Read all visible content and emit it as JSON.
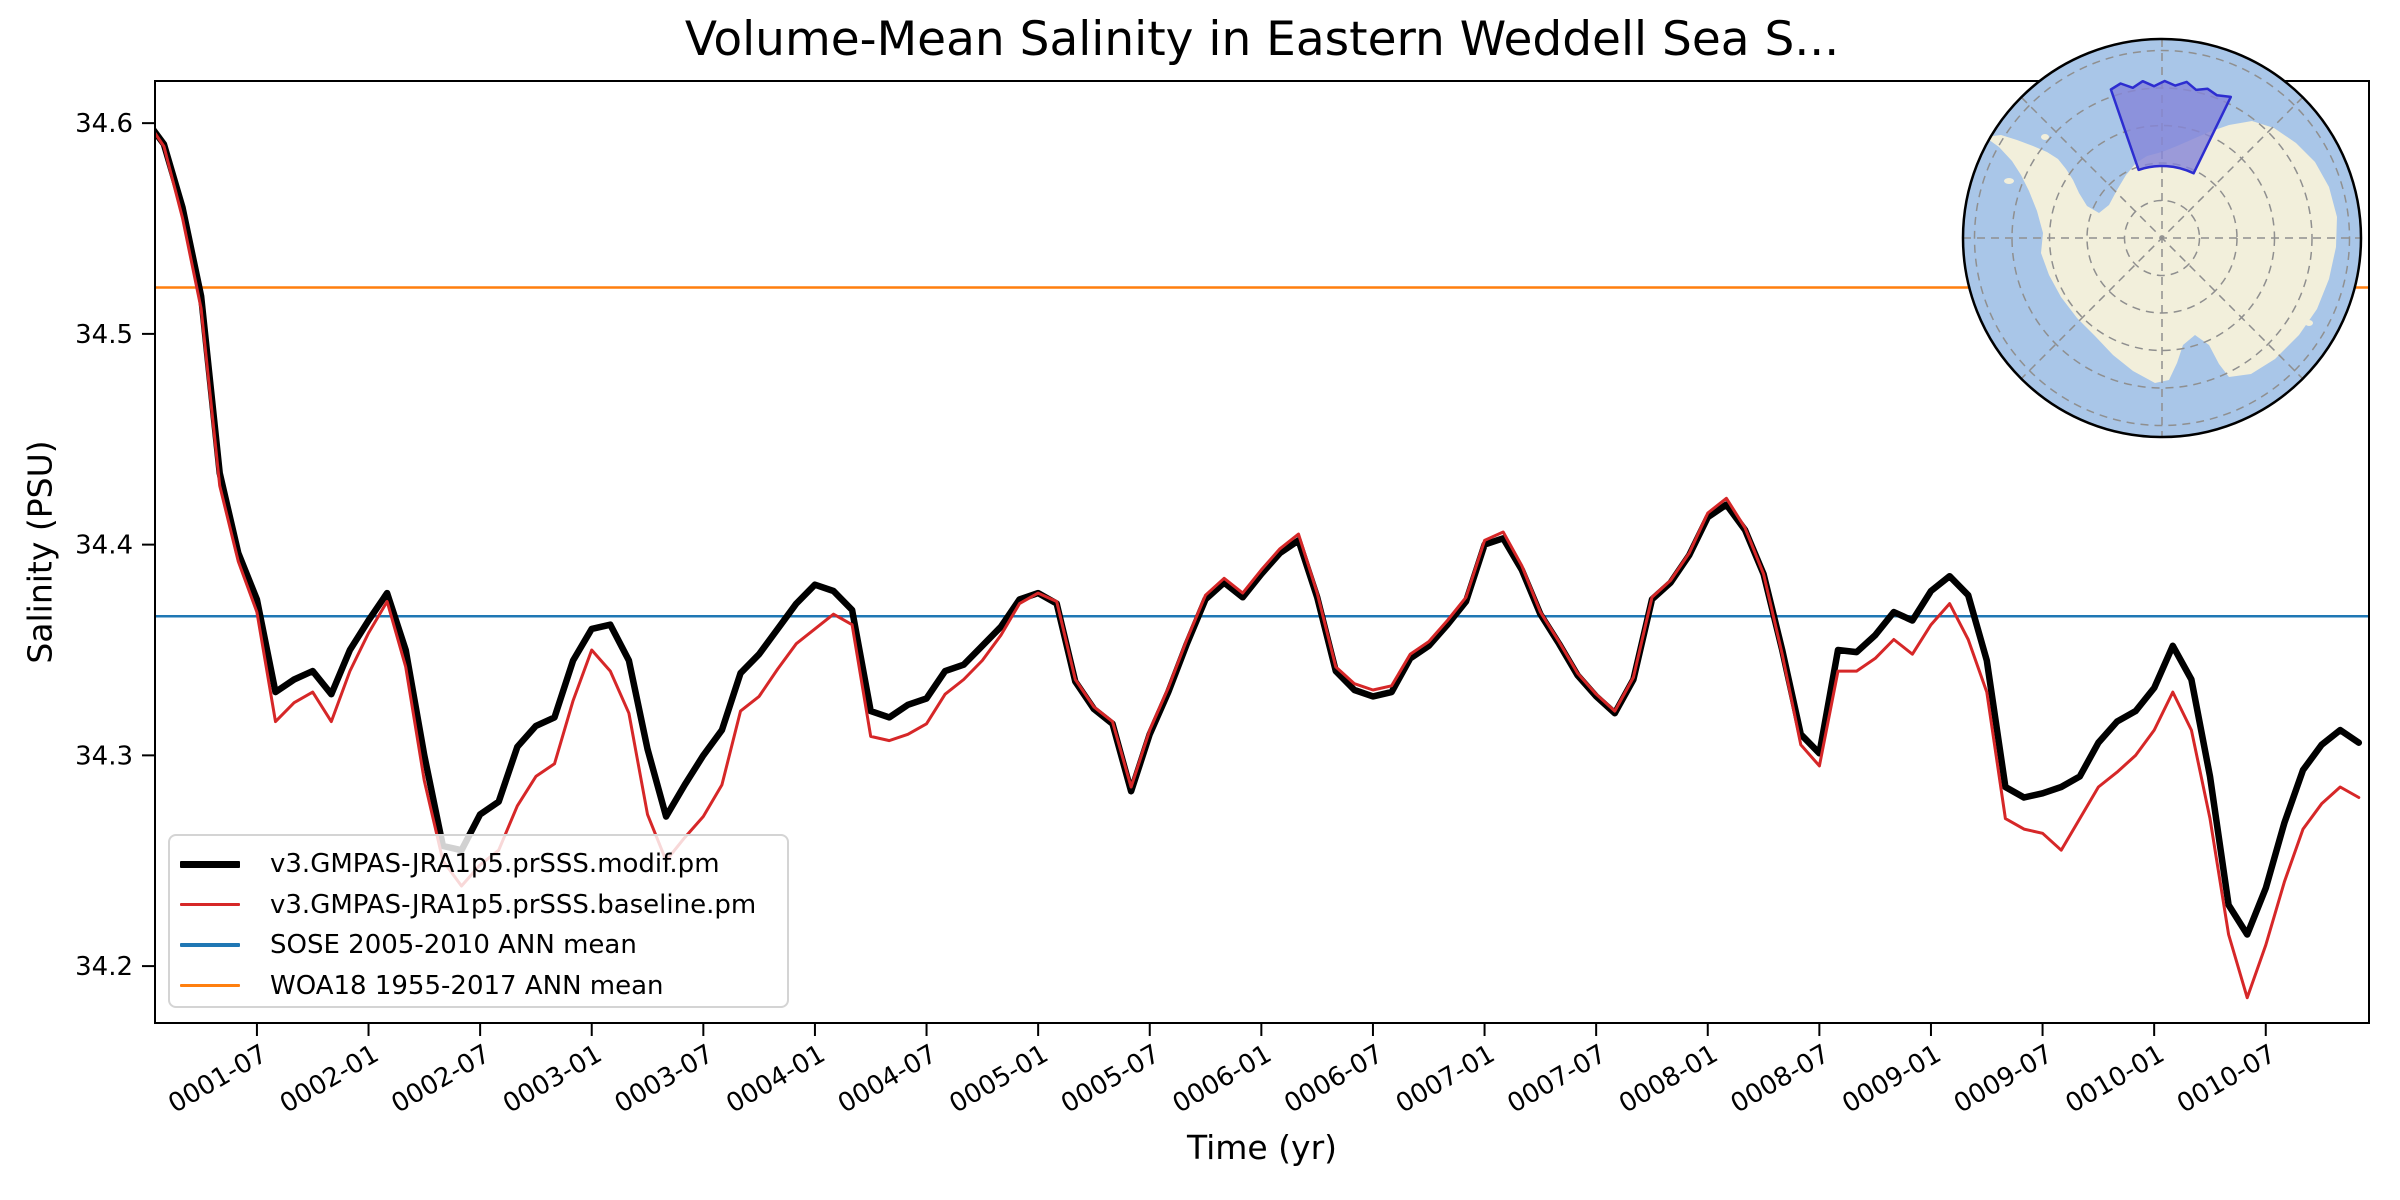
{
  "figure": {
    "title": "Volume-Mean Salinity in Eastern Weddell Sea S...",
    "xlabel": "Time (yr)",
    "ylabel": "Salinity (PSU)"
  },
  "chart_data": {
    "type": "line",
    "title": "Volume-Mean Salinity in Eastern Weddell Sea S...",
    "xlabel": "Time (yr)",
    "ylabel": "Salinity (PSU)",
    "x_unit": "month index from 0001-01",
    "ylim": [
      34.173,
      34.62
    ],
    "xlim_months": [
      0.52,
      119.55
    ],
    "grid": false,
    "ytick_labels": [
      "34.2",
      "34.3",
      "34.4",
      "34.5",
      "34.6"
    ],
    "ytick_values": [
      34.2,
      34.3,
      34.4,
      34.5,
      34.6
    ],
    "xtick_months": [
      6,
      12,
      18,
      24,
      30,
      36,
      42,
      48,
      54,
      60,
      66,
      72,
      78,
      84,
      90,
      96,
      102,
      108,
      114
    ],
    "xtick_labels": [
      "0001-07",
      "0002-01",
      "0002-07",
      "0003-01",
      "0003-07",
      "0004-01",
      "0004-07",
      "0005-01",
      "0005-07",
      "0006-01",
      "0006-07",
      "0007-01",
      "0007-07",
      "0008-01",
      "0008-07",
      "0009-01",
      "0009-07",
      "0010-01",
      "0010-07"
    ],
    "series": [
      {
        "name": "v3.GMPAS-JRA1p5.prSSS.modif.pm",
        "color": "#000000",
        "linewidth": 6.5,
        "values": [
          34.602,
          34.59,
          34.56,
          34.518,
          34.434,
          34.396,
          34.374,
          34.33,
          34.336,
          34.34,
          34.329,
          34.35,
          34.364,
          34.377,
          34.35,
          34.3,
          34.257,
          34.255,
          34.272,
          34.278,
          34.304,
          34.314,
          34.318,
          34.345,
          34.36,
          34.362,
          34.345,
          34.303,
          34.271,
          34.286,
          34.3,
          34.312,
          34.339,
          34.348,
          34.36,
          34.372,
          34.381,
          34.378,
          34.369,
          34.321,
          34.318,
          34.324,
          34.327,
          34.34,
          34.343,
          34.352,
          34.361,
          34.374,
          34.377,
          34.372,
          34.335,
          34.322,
          34.315,
          34.283,
          34.31,
          34.33,
          34.353,
          34.374,
          34.382,
          34.375,
          34.386,
          34.396,
          34.402,
          34.375,
          34.34,
          34.331,
          34.328,
          34.33,
          34.346,
          34.352,
          34.362,
          34.373,
          34.4,
          34.403,
          34.388,
          34.367,
          34.353,
          34.338,
          34.328,
          34.32,
          34.336,
          34.374,
          34.382,
          34.395,
          34.413,
          34.419,
          34.407,
          34.386,
          34.35,
          34.31,
          34.301,
          34.35,
          34.349,
          34.357,
          34.368,
          34.364,
          34.378,
          34.385,
          34.376,
          34.345,
          34.285,
          34.28,
          34.282,
          34.285,
          34.29,
          34.306,
          34.316,
          34.321,
          34.332,
          34.352,
          34.336,
          34.29,
          34.229,
          34.215,
          34.237,
          34.268,
          34.293,
          34.305,
          34.312,
          34.306
        ]
      },
      {
        "name": "v3.GMPAS-JRA1p5.prSSS.baseline.pm",
        "color": "#d62728",
        "linewidth": 3,
        "values": [
          34.602,
          34.589,
          34.555,
          34.512,
          34.428,
          34.392,
          34.368,
          34.316,
          34.325,
          34.33,
          34.316,
          34.34,
          34.358,
          34.373,
          34.342,
          34.288,
          34.25,
          34.238,
          34.248,
          34.255,
          34.276,
          34.29,
          34.296,
          34.326,
          34.35,
          34.34,
          34.32,
          34.272,
          34.25,
          34.261,
          34.271,
          34.286,
          34.321,
          34.328,
          34.341,
          34.353,
          34.36,
          34.367,
          34.362,
          34.309,
          34.307,
          34.31,
          34.315,
          34.329,
          34.336,
          34.345,
          34.357,
          34.372,
          34.377,
          34.373,
          34.336,
          34.323,
          34.316,
          34.285,
          34.312,
          34.332,
          34.355,
          34.376,
          34.384,
          34.377,
          34.388,
          34.398,
          34.405,
          34.377,
          34.342,
          34.334,
          34.331,
          34.333,
          34.348,
          34.354,
          34.364,
          34.375,
          34.402,
          34.406,
          34.39,
          34.368,
          34.354,
          34.339,
          34.329,
          34.321,
          34.337,
          34.375,
          34.383,
          34.396,
          34.415,
          34.422,
          34.408,
          34.386,
          34.348,
          34.305,
          34.295,
          34.34,
          34.34,
          34.346,
          34.355,
          34.348,
          34.362,
          34.372,
          34.355,
          34.33,
          34.27,
          34.265,
          34.263,
          34.255,
          34.27,
          34.285,
          34.292,
          34.3,
          34.312,
          34.33,
          34.312,
          34.27,
          34.215,
          34.185,
          34.21,
          34.24,
          34.265,
          34.277,
          34.285,
          34.28
        ]
      }
    ],
    "hlines": [
      {
        "name": "SOSE 2005-2010 ANN mean",
        "color": "#1f77b4",
        "value": 34.366,
        "linewidth": 2.5
      },
      {
        "name": "WOA18 1955-2017 ANN mean",
        "color": "#ff7f0e",
        "value": 34.522,
        "linewidth": 2.5
      }
    ],
    "legend_position": "lower left"
  },
  "inset_map": {
    "name": "antarctica-polar-inset",
    "ocean_color": "#a9c6e8",
    "land_color": "#f2efdb",
    "graticule_color": "#8f8f8f",
    "region_fill": "#8585d8",
    "region_fill_opacity": 0.8,
    "region_border": "#2d2dd0",
    "border_color": "#000000"
  }
}
